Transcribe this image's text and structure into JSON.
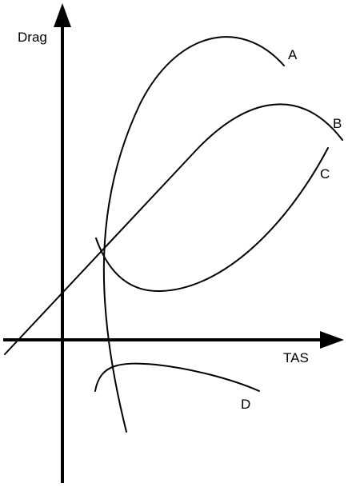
{
  "axes": {
    "y_label": "Drag",
    "x_label": "TAS"
  },
  "curves": [
    {
      "id": "A",
      "label": "A"
    },
    {
      "id": "B",
      "label": "B"
    },
    {
      "id": "C",
      "label": "C"
    },
    {
      "id": "D",
      "label": "D"
    }
  ],
  "colors": {
    "stroke": "#000000",
    "background": "#ffffff"
  }
}
